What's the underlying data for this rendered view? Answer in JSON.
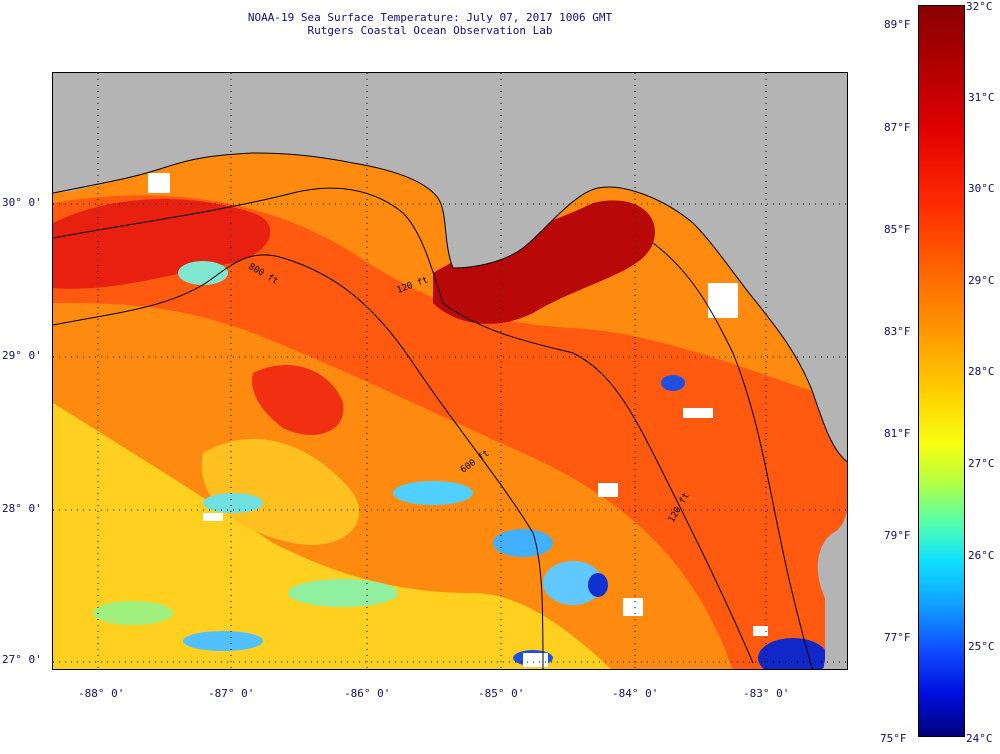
{
  "title": {
    "line1": "NOAA-19 Sea Surface Temperature:  July 07, 2017 1006 GMT",
    "line2": "Rutgers Coastal Ocean Observation Lab"
  },
  "map": {
    "longitude_labels": [
      "-88° 0'",
      "-87° 0'",
      "-86° 0'",
      "-85° 0'",
      "-84° 0'",
      "-83° 0'"
    ],
    "latitude_labels": [
      "30° 0'",
      "29° 0'",
      "28° 0'",
      "27° 0'"
    ],
    "isobath_labels": [
      "800 ft",
      "120 ft",
      "600 ft",
      "120 ft"
    ],
    "colors": {
      "land": "#b4b4b4",
      "water_hot": "#e83010",
      "water_warm": "#ff8a00",
      "water_mild": "#ffd400",
      "water_cool": "#40c8ff",
      "water_cold": "#1030e0",
      "cloud": "#ffffff",
      "grid": "#000000"
    }
  },
  "colorbar": {
    "celsius_labels": [
      "32°C",
      "31°C",
      "30°C",
      "29°C",
      "28°C",
      "27°C",
      "26°C",
      "25°C",
      "24°C"
    ],
    "fahrenheit_labels": [
      "89°F",
      "87°F",
      "85°F",
      "83°F",
      "81°F",
      "79°F",
      "77°F",
      "75°F"
    ]
  }
}
